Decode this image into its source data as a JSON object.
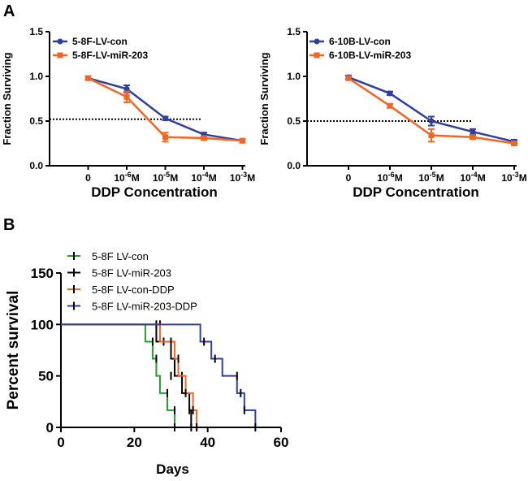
{
  "chart_data": [
    {
      "type": "line",
      "panel": "A",
      "ylabel": "Fraction Surviving",
      "xlabel": "DDP Concentration",
      "ylim": [
        0,
        1.5
      ],
      "yticks": [
        "0.0",
        "0.5",
        "1.0",
        "1.5"
      ],
      "categories": [
        {
          "base": "0",
          "exp": ""
        },
        {
          "base": "10",
          "exp": "-6",
          "unit": "M"
        },
        {
          "base": "10",
          "exp": "-5",
          "unit": "M"
        },
        {
          "base": "10",
          "exp": "-4",
          "unit": "M"
        },
        {
          "base": "10",
          "exp": "-3",
          "unit": "M"
        }
      ],
      "threshold": 0.52,
      "legend_position": "top-left",
      "series": [
        {
          "name": "5-8F-LV-con",
          "color": "#2e3f9e",
          "marker": "circle",
          "values": [
            0.98,
            0.86,
            0.53,
            0.35,
            0.28
          ],
          "errors": [
            0.02,
            0.04,
            0.02,
            0.02,
            0.02
          ]
        },
        {
          "name": "5-8F-LV-miR-203",
          "color": "#f26522",
          "marker": "square",
          "values": [
            0.98,
            0.77,
            0.32,
            0.31,
            0.28
          ],
          "errors": [
            0.02,
            0.06,
            0.05,
            0.02,
            0.02
          ]
        }
      ]
    },
    {
      "type": "line",
      "panel": "A",
      "ylabel": "Fraction Surviving",
      "xlabel": "DDP Concentration",
      "ylim": [
        0,
        1.5
      ],
      "yticks": [
        "0.0",
        "0.5",
        "1.0",
        "1.5"
      ],
      "categories": [
        {
          "base": "0",
          "exp": ""
        },
        {
          "base": "10",
          "exp": "-6",
          "unit": "M"
        },
        {
          "base": "10",
          "exp": "-5",
          "unit": "M"
        },
        {
          "base": "10",
          "exp": "-4",
          "unit": "M"
        },
        {
          "base": "10",
          "exp": "-3",
          "unit": "M"
        }
      ],
      "threshold": 0.5,
      "legend_position": "top-left",
      "series": [
        {
          "name": "6-10B-LV-con",
          "color": "#2e3f9e",
          "marker": "circle",
          "values": [
            0.99,
            0.81,
            0.5,
            0.38,
            0.27
          ],
          "errors": [
            0.02,
            0.02,
            0.05,
            0.03,
            0.02
          ]
        },
        {
          "name": "6-10B-LV-miR-203",
          "color": "#f26522",
          "marker": "square",
          "values": [
            0.98,
            0.67,
            0.34,
            0.32,
            0.25
          ],
          "errors": [
            0.02,
            0.02,
            0.07,
            0.02,
            0.02
          ]
        }
      ]
    },
    {
      "type": "step",
      "panel": "B",
      "ylabel": "Percent survival",
      "xlabel": "Days",
      "xlim": [
        0,
        60
      ],
      "ylim": [
        0,
        150
      ],
      "xticks": [
        0,
        20,
        40,
        60
      ],
      "yticks": [
        0,
        50,
        100,
        150
      ],
      "legend_position": "top-left",
      "series": [
        {
          "name": "5-8F LV-con",
          "color": "#22a02a",
          "steps": [
            [
              0,
              100
            ],
            [
              23,
              83.3
            ],
            [
              25,
              66.7
            ],
            [
              26,
              50
            ],
            [
              27,
              33.3
            ],
            [
              29,
              16.7
            ],
            [
              31,
              0
            ]
          ],
          "censors": [
            [
              25,
              83.3
            ],
            [
              26,
              66.7
            ],
            [
              29,
              33.3
            ],
            [
              31,
              16.7
            ],
            [
              31,
              0
            ]
          ]
        },
        {
          "name": "5-8F LV-miR-203",
          "color": "#000000",
          "steps": [
            [
              0,
              100
            ],
            [
              26,
              83.3
            ],
            [
              30,
              66.7
            ],
            [
              31,
              50
            ],
            [
              33,
              33.3
            ],
            [
              35,
              16.7
            ],
            [
              35.5,
              0
            ]
          ],
          "censors": [
            [
              27,
              100
            ],
            [
              28,
              83.3
            ],
            [
              30,
              50
            ],
            [
              33,
              50
            ],
            [
              35,
              16.7
            ],
            [
              35.5,
              0
            ]
          ]
        },
        {
          "name": "5-8F LV-con-DDP",
          "color": "#f26522",
          "steps": [
            [
              0,
              100
            ],
            [
              27,
              83.3
            ],
            [
              31,
              66.7
            ],
            [
              32,
              50
            ],
            [
              34,
              33.3
            ],
            [
              36,
              16.7
            ],
            [
              37,
              0
            ]
          ],
          "censors": [
            [
              26,
              100
            ],
            [
              30,
              83.3
            ],
            [
              32,
              66.7
            ],
            [
              34,
              33.3
            ],
            [
              36,
              16.7
            ],
            [
              37,
              0
            ]
          ]
        },
        {
          "name": "5-8F LV-miR-203-DDP",
          "color": "#2e3f9e",
          "steps": [
            [
              0,
              100
            ],
            [
              38,
              83.3
            ],
            [
              41,
              66.7
            ],
            [
              44,
              50
            ],
            [
              48,
              33.3
            ],
            [
              50,
              16.7
            ],
            [
              53,
              0
            ]
          ],
          "censors": [
            [
              39,
              83.3
            ],
            [
              42,
              66.7
            ],
            [
              48,
              50
            ],
            [
              49,
              33.3
            ],
            [
              50,
              16.7
            ],
            [
              53,
              0
            ]
          ]
        }
      ]
    }
  ],
  "panels": {
    "a_label": "A",
    "b_label": "B"
  }
}
